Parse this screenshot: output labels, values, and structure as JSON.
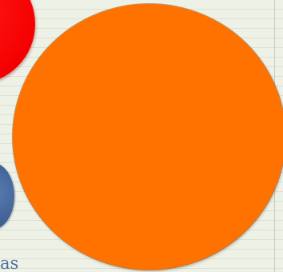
{
  "canvas": {
    "background_color": "#eef1e6",
    "corner_text": "as"
  },
  "shapes": [
    {
      "kind": "circle",
      "color": "#f50000",
      "name": "red"
    },
    {
      "kind": "circle",
      "color": "#43649a",
      "name": "blue"
    },
    {
      "kind": "circle",
      "color": "#ff7200",
      "name": "orange"
    }
  ]
}
